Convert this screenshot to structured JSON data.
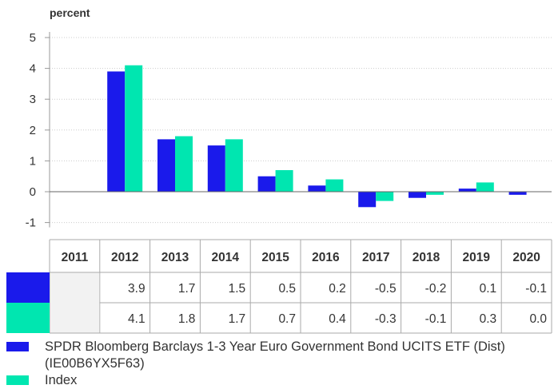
{
  "chart_data": {
    "type": "bar",
    "ylabel": "percent",
    "ylim": [
      -1,
      5
    ],
    "yticks": [
      5,
      4,
      3,
      2,
      1,
      0,
      -1
    ],
    "grid": true,
    "categories": [
      "2011",
      "2012",
      "2013",
      "2014",
      "2015",
      "2016",
      "2017",
      "2018",
      "2019",
      "2020"
    ],
    "series": [
      {
        "name": "SPDR Bloomberg Barclays 1-3 Year Euro Government Bond UCITS ETF (Dist) (IE00B6YX5F63)",
        "color": "#1a1aeb",
        "values": [
          null,
          3.9,
          1.7,
          1.5,
          0.5,
          0.2,
          -0.5,
          -0.2,
          0.1,
          -0.1
        ],
        "labels": [
          "",
          "3.9",
          "1.7",
          "1.5",
          "0.5",
          "0.2",
          "-0.5",
          "-0.2",
          "0.1",
          "-0.1"
        ]
      },
      {
        "name": "Index",
        "color": "#00e6b0",
        "values": [
          null,
          4.1,
          1.8,
          1.7,
          0.7,
          0.4,
          -0.3,
          -0.1,
          0.3,
          0.0
        ],
        "labels": [
          "",
          "4.1",
          "1.8",
          "1.7",
          "0.7",
          "0.4",
          "-0.3",
          "-0.1",
          "0.3",
          "0.0"
        ]
      }
    ],
    "legend_position": "bottom-left"
  }
}
